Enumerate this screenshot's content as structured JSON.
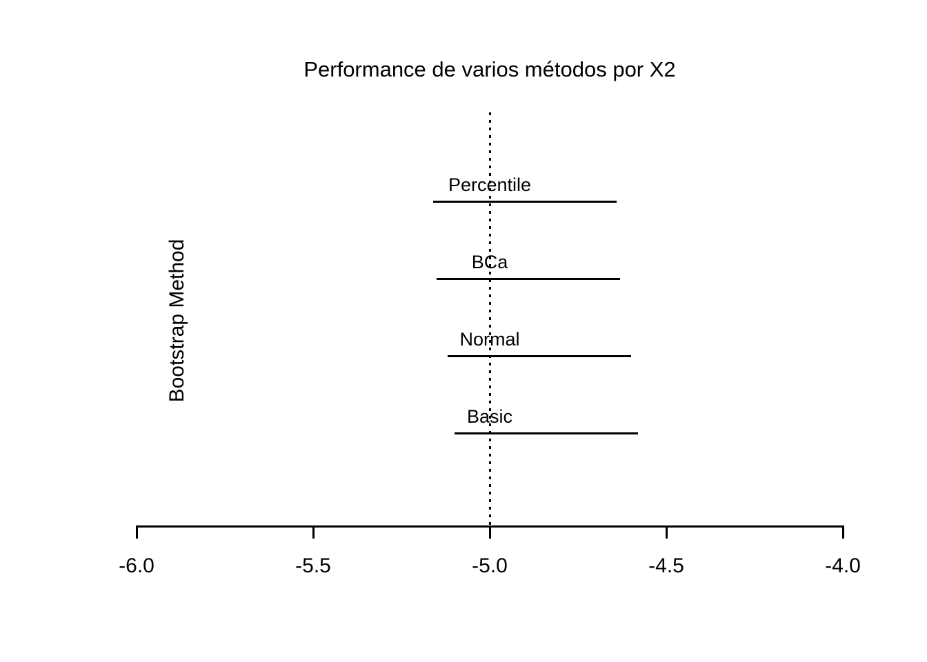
{
  "chart_data": {
    "type": "line",
    "variant": "horizontal-confidence-intervals",
    "title": "Performance de varios métodos por X2",
    "xlabel": "",
    "ylabel": "Bootstrap Method",
    "xlim": [
      -6.0,
      -4.0
    ],
    "x_ticks": [
      -6.0,
      -5.5,
      -5.0,
      -4.5,
      -4.0
    ],
    "x_tick_labels": [
      "-6.0",
      "-5.5",
      "-5.0",
      "-4.5",
      "-4.0"
    ],
    "reference_line": {
      "x": -5.0,
      "style": "dotted"
    },
    "categories_top_to_bottom": [
      "Percentile",
      "BCa",
      "Normal",
      "Basic"
    ],
    "intervals": [
      {
        "label": "Percentile",
        "lower": -5.16,
        "upper": -4.64
      },
      {
        "label": "BCa",
        "lower": -5.15,
        "upper": -4.63
      },
      {
        "label": "Normal",
        "lower": -5.12,
        "upper": -4.6
      },
      {
        "label": "Basic",
        "lower": -5.1,
        "upper": -4.58
      }
    ],
    "legend": "none",
    "grid": false,
    "colors": {
      "foreground": "#000000",
      "background": "#ffffff"
    }
  }
}
